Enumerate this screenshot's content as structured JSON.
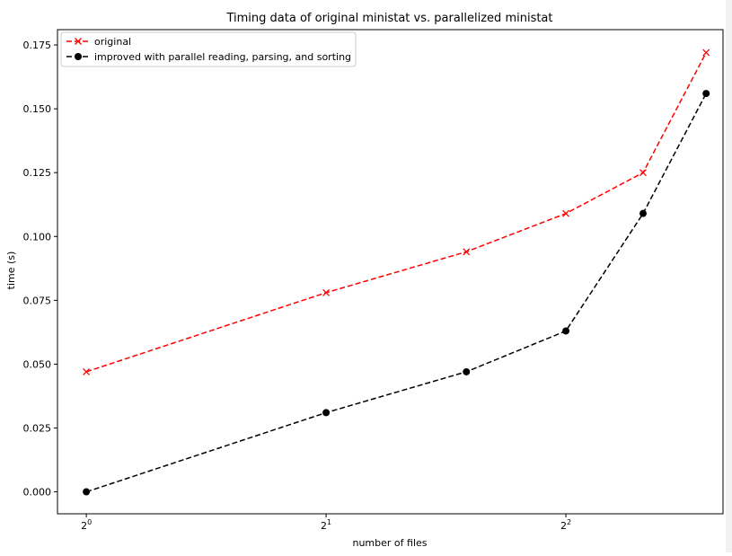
{
  "chart_data": {
    "type": "line",
    "title": "Timing data of original ministat vs. parallelized ministat",
    "xlabel": "number of files",
    "ylabel": "time (s)",
    "x_scale": "log2",
    "x": [
      1,
      2,
      3,
      4,
      5,
      6
    ],
    "x_ticks": [
      {
        "value": 1,
        "base": "2",
        "exp": "0"
      },
      {
        "value": 2,
        "base": "2",
        "exp": "1"
      },
      {
        "value": 4,
        "base": "2",
        "exp": "2"
      }
    ],
    "y_ticks": [
      "0.000",
      "0.025",
      "0.050",
      "0.075",
      "0.100",
      "0.125",
      "0.150",
      "0.175"
    ],
    "ylim": [
      -0.0086,
      0.181
    ],
    "xlim": [
      0.92,
      6.3
    ],
    "grid": false,
    "legend_position": "upper-left",
    "series": [
      {
        "name": "original",
        "color": "#ff0000",
        "marker": "x",
        "linestyle": "dashed",
        "values": [
          0.047,
          0.078,
          0.094,
          0.109,
          0.125,
          0.172
        ]
      },
      {
        "name": "improved with parallel reading, parsing, and sorting",
        "color": "#000000",
        "marker": "o",
        "linestyle": "dashed",
        "values": [
          0.0,
          0.031,
          0.047,
          0.063,
          0.109,
          0.156
        ]
      }
    ]
  }
}
